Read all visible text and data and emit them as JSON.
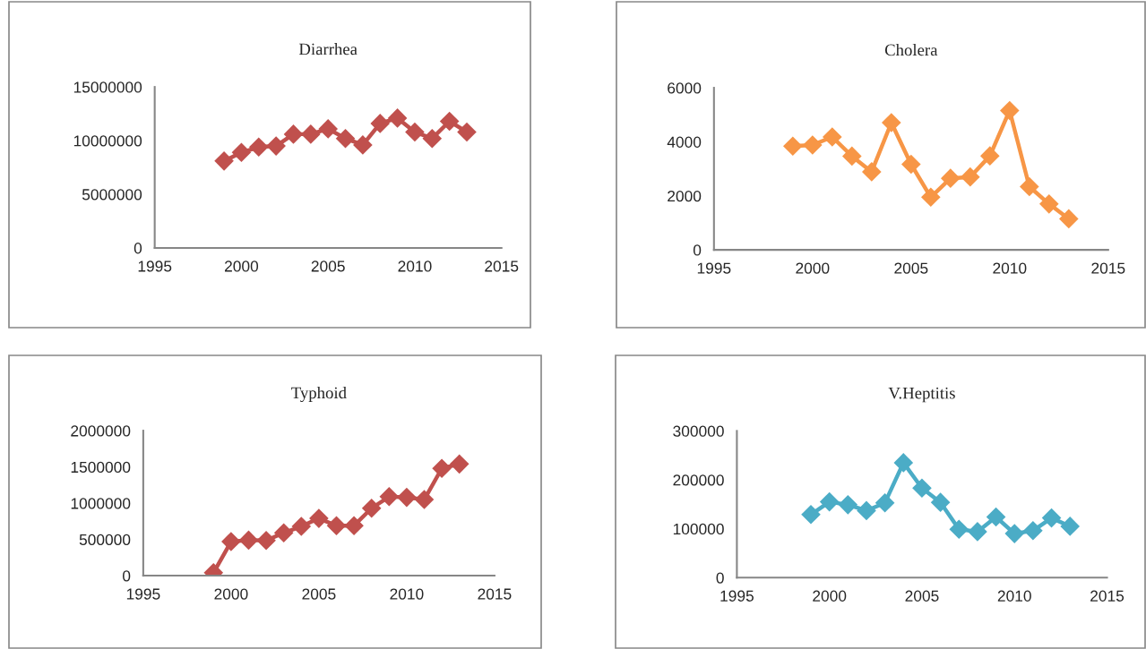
{
  "chart_data": [
    {
      "type": "line",
      "title": "Diarrhea",
      "x": [
        1999,
        2000,
        2001,
        2002,
        2003,
        2004,
        2005,
        2006,
        2007,
        2008,
        2009,
        2010,
        2011,
        2012,
        2013
      ],
      "series": [
        {
          "color": "#c0504d",
          "values": [
            8100000,
            8900000,
            9400000,
            9500000,
            10600000,
            10600000,
            11100000,
            10200000,
            9600000,
            11600000,
            12100000,
            10800000,
            10200000,
            11800000,
            10800000
          ]
        }
      ],
      "xlim": [
        1995,
        2015
      ],
      "xticks": [
        1995,
        2000,
        2005,
        2010,
        2015
      ],
      "ylim": [
        0,
        15000000
      ],
      "yticks": [
        0,
        5000000,
        10000000,
        15000000
      ],
      "grid": false,
      "marker": "diamond",
      "line_style": "solid"
    },
    {
      "type": "line",
      "title": "Cholera",
      "x": [
        1999,
        2000,
        2001,
        2002,
        2003,
        2004,
        2005,
        2006,
        2007,
        2008,
        2009,
        2010,
        2011,
        2012,
        2013
      ],
      "series": [
        {
          "color": "#f79646",
          "values": [
            3840,
            3880,
            4180,
            3470,
            2890,
            4710,
            3170,
            1950,
            2650,
            2700,
            3480,
            5160,
            2340,
            1700,
            1150
          ]
        }
      ],
      "xlim": [
        1995,
        2015
      ],
      "xticks": [
        1995,
        2000,
        2005,
        2010,
        2015
      ],
      "ylim": [
        0,
        6000
      ],
      "yticks": [
        0,
        2000,
        4000,
        6000
      ],
      "grid": false,
      "marker": "diamond",
      "line_style": "solid"
    },
    {
      "type": "line",
      "title": "Typhoid",
      "x": [
        1999,
        2000,
        2001,
        2002,
        2003,
        2004,
        2005,
        2006,
        2007,
        2008,
        2009,
        2010,
        2011,
        2012,
        2013
      ],
      "series": [
        {
          "color": "#c0504d",
          "values": [
            40000,
            470000,
            490000,
            485000,
            590000,
            680000,
            790000,
            690000,
            690000,
            930000,
            1090000,
            1080000,
            1050000,
            1480000,
            1540000
          ]
        }
      ],
      "xlim": [
        1995,
        2015
      ],
      "xticks": [
        1995,
        2000,
        2005,
        2010,
        2015
      ],
      "ylim": [
        0,
        2000000
      ],
      "yticks": [
        0,
        500000,
        1000000,
        1500000,
        2000000
      ],
      "grid": false,
      "marker": "diamond",
      "line_style": "solid"
    },
    {
      "type": "line",
      "title": "V.Heptitis",
      "x": [
        1999,
        2000,
        2001,
        2002,
        2003,
        2004,
        2005,
        2006,
        2007,
        2008,
        2009,
        2010,
        2011,
        2012,
        2013
      ],
      "series": [
        {
          "color": "#4bacc6",
          "values": [
            129000,
            155000,
            149000,
            137000,
            153000,
            235000,
            183000,
            154000,
            99000,
            94000,
            124000,
            90000,
            96000,
            122000,
            105000
          ]
        }
      ],
      "xlim": [
        1995,
        2015
      ],
      "xticks": [
        1995,
        2000,
        2005,
        2010,
        2015
      ],
      "ylim": [
        0,
        300000
      ],
      "yticks": [
        0,
        100000,
        200000,
        300000
      ],
      "grid": false,
      "marker": "diamond",
      "line_style": "solid"
    }
  ]
}
